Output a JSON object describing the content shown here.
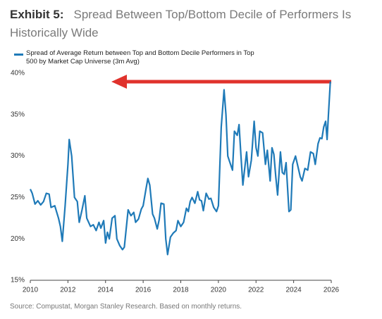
{
  "chart_data": {
    "type": "line",
    "title": "Exhibit 5:",
    "subtitle": "Spread Between Top/Bottom Decile of Performers Is Historically Wide",
    "source": "Source: Compustat, Morgan Stanley Research. Based on monthly returns.",
    "xlim": [
      2010,
      2026
    ],
    "xticks": [
      2010,
      2012,
      2014,
      2016,
      2018,
      2020,
      2022,
      2024,
      2026
    ],
    "ylim": [
      15,
      40
    ],
    "yticks": [
      {
        "value": 15,
        "label": "15%"
      },
      {
        "value": 20,
        "label": "20%"
      },
      {
        "value": 25,
        "label": "25%"
      },
      {
        "value": 30,
        "label": "30%"
      },
      {
        "value": 35,
        "label": "35%"
      },
      {
        "value": 40,
        "label": "40%"
      }
    ],
    "grid": false,
    "x": [
      2010.0,
      2010.1,
      2010.25,
      2010.4,
      2010.55,
      2010.7,
      2010.85,
      2011.0,
      2011.1,
      2011.3,
      2011.5,
      2011.6,
      2011.7,
      2011.85,
      2012.0,
      2012.07,
      2012.2,
      2012.35,
      2012.5,
      2012.6,
      2012.75,
      2012.9,
      2013.0,
      2013.2,
      2013.35,
      2013.5,
      2013.65,
      2013.75,
      2013.9,
      2014.0,
      2014.1,
      2014.2,
      2014.35,
      2014.5,
      2014.6,
      2014.75,
      2014.9,
      2015.0,
      2015.2,
      2015.35,
      2015.5,
      2015.6,
      2015.75,
      2015.9,
      2016.0,
      2016.15,
      2016.25,
      2016.35,
      2016.5,
      2016.6,
      2016.75,
      2016.85,
      2016.95,
      2017.1,
      2017.2,
      2017.3,
      2017.45,
      2017.6,
      2017.75,
      2017.85,
      2018.0,
      2018.15,
      2018.3,
      2018.4,
      2018.5,
      2018.6,
      2018.75,
      2018.9,
      2019.0,
      2019.1,
      2019.2,
      2019.35,
      2019.5,
      2019.6,
      2019.75,
      2019.9,
      2020.0,
      2020.15,
      2020.3,
      2020.4,
      2020.5,
      2020.6,
      2020.75,
      2020.85,
      2021.0,
      2021.1,
      2021.2,
      2021.3,
      2021.4,
      2021.5,
      2021.6,
      2021.75,
      2021.9,
      2022.0,
      2022.1,
      2022.2,
      2022.35,
      2022.5,
      2022.6,
      2022.75,
      2022.85,
      2022.95,
      2023.05,
      2023.15,
      2023.3,
      2023.4,
      2023.5,
      2023.6,
      2023.75,
      2023.85,
      2023.95,
      2024.1,
      2024.2,
      2024.35,
      2024.45,
      2024.6,
      2024.75,
      2024.9,
      2025.05,
      2025.15,
      2025.3,
      2025.4,
      2025.5,
      2025.6,
      2025.7,
      2025.78,
      2025.85,
      2025.95
    ],
    "series": [
      {
        "name": "Spread of Average Return between Top and Bottom Decile Performers in Top 500 by Market Cap Universe (3m Avg)",
        "color": "#1f7ab8",
        "values": [
          26,
          25.5,
          24.2,
          24.6,
          24.1,
          24.5,
          25.5,
          25.4,
          23.8,
          24,
          22.5,
          21.5,
          19.7,
          24,
          29,
          32,
          30,
          25,
          24.5,
          22,
          23.5,
          25.2,
          22.5,
          21.5,
          21.7,
          21,
          22,
          21.3,
          22.2,
          19.5,
          20.8,
          20,
          22.5,
          22.8,
          20,
          19.2,
          18.7,
          19,
          23.5,
          22.8,
          23.2,
          22,
          22.4,
          23.6,
          24,
          26,
          27.3,
          26.5,
          23,
          22.5,
          21.2,
          22.3,
          24.3,
          24.2,
          20,
          18.1,
          20.2,
          20.7,
          21,
          22.2,
          21.5,
          22,
          23.7,
          23.3,
          24.5,
          25,
          24.3,
          25.7,
          24.7,
          24.6,
          23.4,
          25.5,
          24.8,
          24.9,
          23.8,
          23.3,
          24,
          33.5,
          38,
          35,
          30,
          29.3,
          28.3,
          33,
          32.5,
          33.8,
          30,
          26.5,
          28.5,
          30.5,
          27.5,
          29.5,
          34.2,
          31,
          30,
          33,
          32.8,
          29,
          30.7,
          27,
          31,
          30.2,
          27.5,
          25.3,
          30.5,
          28,
          27.8,
          29.2,
          23.3,
          23.5,
          29,
          30,
          29,
          27.5,
          27,
          28.5,
          28.3,
          30.5,
          30.3,
          29,
          31.5,
          32.2,
          32.1,
          33.5,
          34.2,
          32,
          35,
          39
        ]
      }
    ]
  }
}
